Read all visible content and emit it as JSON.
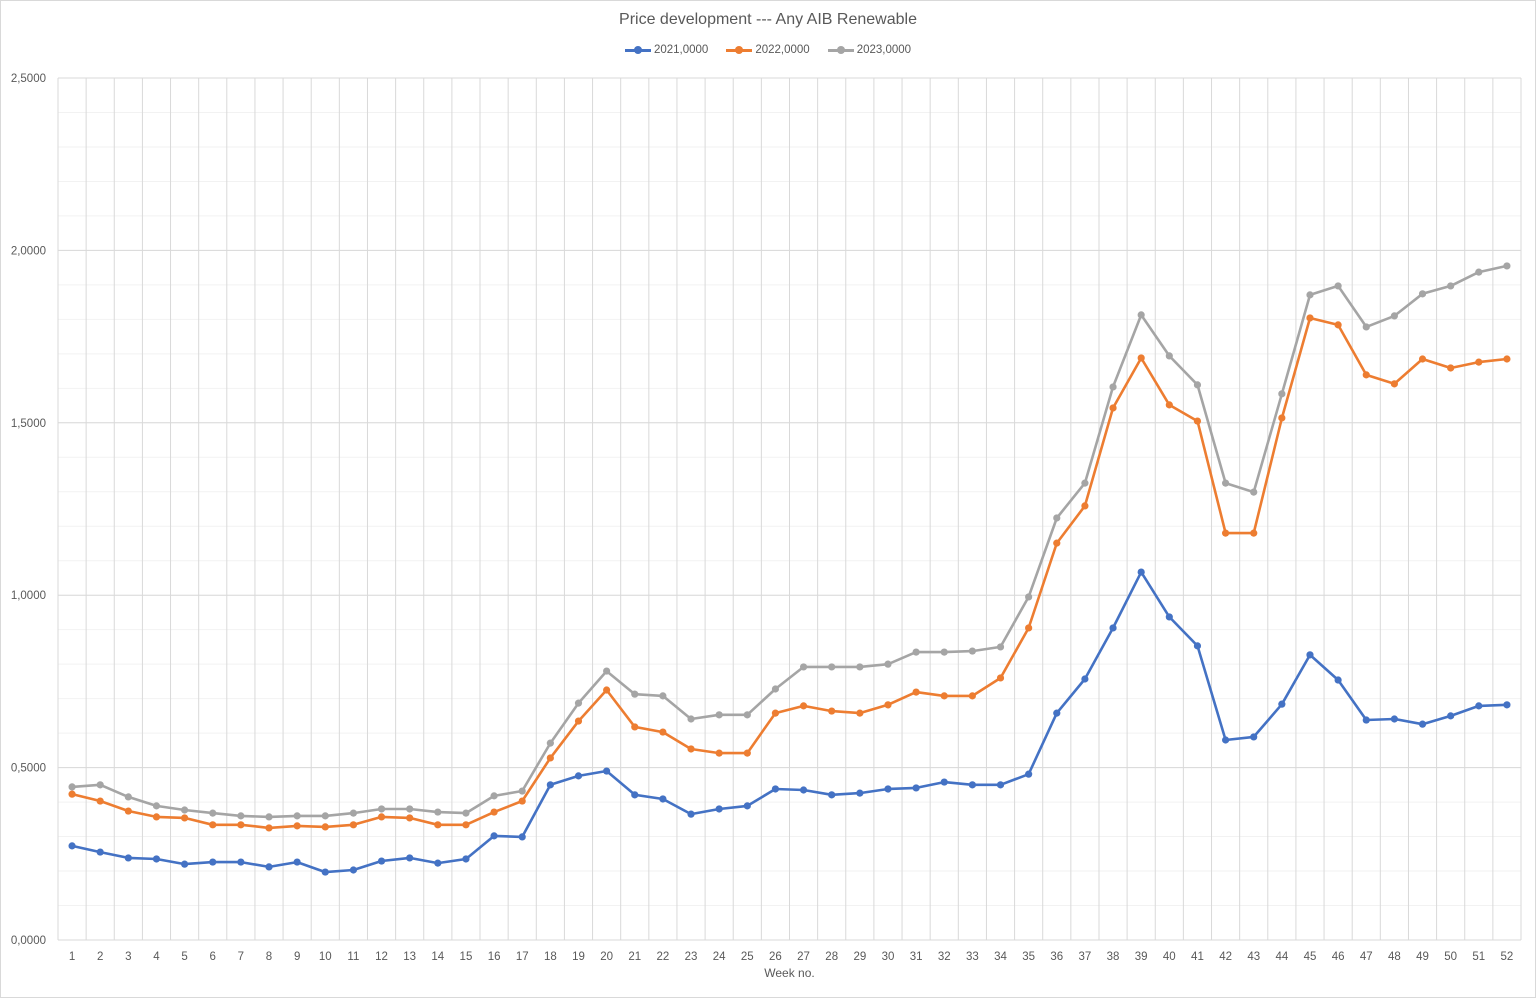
{
  "chart_data": {
    "type": "line",
    "title": "Price development --- Any AIB Renewable",
    "xlabel": "Week no.",
    "ylabel": "",
    "ylim": [
      0,
      2.5
    ],
    "y_ticks": [
      "0,0000",
      "0,5000",
      "1,0000",
      "1,5000",
      "2,0000",
      "2,5000"
    ],
    "y_tick_values": [
      0,
      0.5,
      1.0,
      1.5,
      2.0,
      2.5
    ],
    "minor_grid_step": 0.1,
    "grid": true,
    "legend_position": "top",
    "categories": [
      1,
      2,
      3,
      4,
      5,
      6,
      7,
      8,
      9,
      10,
      11,
      12,
      13,
      14,
      15,
      16,
      17,
      18,
      19,
      20,
      21,
      22,
      23,
      24,
      25,
      26,
      27,
      28,
      29,
      30,
      31,
      32,
      33,
      34,
      35,
      36,
      37,
      38,
      39,
      40,
      41,
      42,
      43,
      44,
      45,
      46,
      47,
      48,
      49,
      50,
      51,
      52
    ],
    "series": [
      {
        "name": "2021,0000",
        "color": "#4472c4",
        "values": [
          0.273,
          0.255,
          0.238,
          0.235,
          0.22,
          0.226,
          0.226,
          0.212,
          0.226,
          0.197,
          0.203,
          0.229,
          0.238,
          0.223,
          0.235,
          0.302,
          0.299,
          0.45,
          0.476,
          0.49,
          0.421,
          0.409,
          0.365,
          0.38,
          0.389,
          0.438,
          0.435,
          0.421,
          0.426,
          0.438,
          0.441,
          0.458,
          0.45,
          0.45,
          0.481,
          0.658,
          0.757,
          0.905,
          1.067,
          0.937,
          0.853,
          0.58,
          0.589,
          0.684,
          0.827,
          0.754,
          0.638,
          0.641,
          0.626,
          0.65,
          0.679,
          0.682
        ]
      },
      {
        "name": "2022,0000",
        "color": "#ed7d31",
        "values": [
          0.423,
          0.403,
          0.374,
          0.357,
          0.354,
          0.334,
          0.334,
          0.325,
          0.331,
          0.328,
          0.334,
          0.357,
          0.354,
          0.334,
          0.334,
          0.371,
          0.403,
          0.528,
          0.635,
          0.725,
          0.618,
          0.603,
          0.554,
          0.542,
          0.542,
          0.658,
          0.679,
          0.664,
          0.658,
          0.682,
          0.719,
          0.708,
          0.708,
          0.76,
          0.905,
          1.151,
          1.259,
          1.543,
          1.688,
          1.552,
          1.505,
          1.18,
          1.18,
          1.514,
          1.804,
          1.784,
          1.639,
          1.613,
          1.685,
          1.659,
          1.676,
          1.685
        ]
      },
      {
        "name": "2023,0000",
        "color": "#a5a5a5",
        "values": [
          0.444,
          0.45,
          0.415,
          0.389,
          0.377,
          0.368,
          0.36,
          0.357,
          0.36,
          0.36,
          0.368,
          0.38,
          0.38,
          0.371,
          0.368,
          0.418,
          0.432,
          0.571,
          0.687,
          0.78,
          0.713,
          0.708,
          0.641,
          0.653,
          0.653,
          0.728,
          0.792,
          0.792,
          0.792,
          0.8,
          0.835,
          0.835,
          0.838,
          0.85,
          0.995,
          1.224,
          1.325,
          1.604,
          1.813,
          1.694,
          1.61,
          1.325,
          1.299,
          1.584,
          1.871,
          1.897,
          1.778,
          1.81,
          1.874,
          1.897,
          1.937,
          1.955
        ]
      }
    ]
  }
}
